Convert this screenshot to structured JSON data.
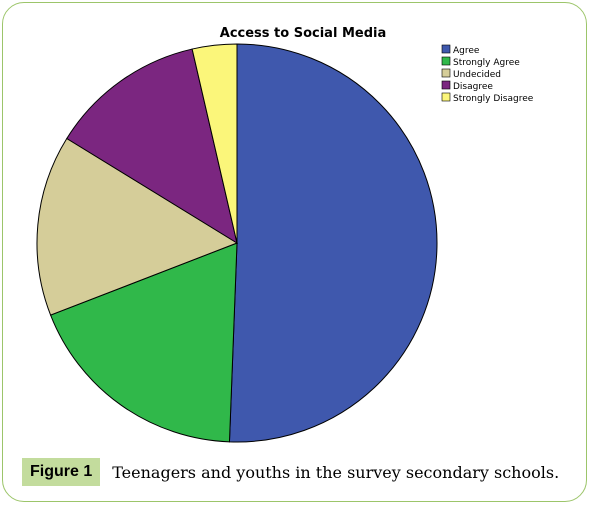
{
  "chart_data": {
    "type": "pie",
    "title": "Access to Social Media",
    "legend_position": "top-right",
    "categories": [
      "Agree",
      "Strongly Agree",
      "Undecided",
      "Disagree",
      "Strongly Disagree"
    ],
    "values": [
      50.6,
      18.5,
      14.7,
      12.6,
      3.6
    ],
    "colors": [
      "#3f58ad",
      "#30b84a",
      "#d5cd99",
      "#7b2680",
      "#fbf67a"
    ]
  },
  "caption": {
    "label": "Figure 1",
    "text": "Teenagers and youths in the survey secondary schools."
  }
}
